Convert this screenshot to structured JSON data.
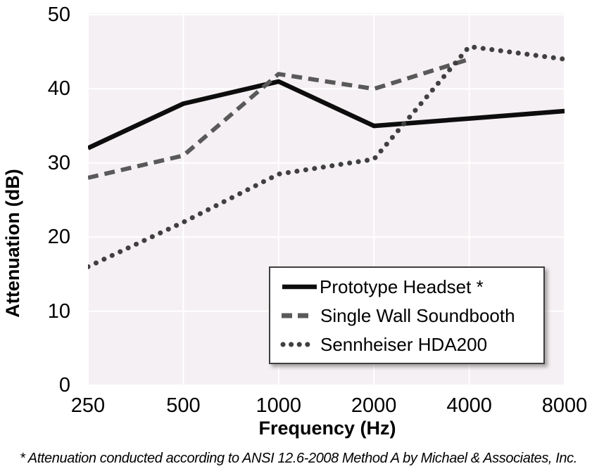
{
  "chart_data": {
    "type": "line",
    "title": "",
    "xlabel": "Frequency (Hz)",
    "ylabel": "Attenuation (dB)",
    "categories": [
      "250",
      "500",
      "1000",
      "2000",
      "4000",
      "8000"
    ],
    "y_ticks": [
      0,
      10,
      20,
      30,
      40,
      50
    ],
    "ylim": [
      0,
      50
    ],
    "grid": true,
    "plot_bg": "#f5f0f3",
    "grid_color": "#ffffff",
    "legend_position": "inside-bottom-right",
    "series": [
      {
        "name": "Prototype Headset *",
        "style": "solid",
        "color": "#0d0d0d",
        "values": [
          32,
          38,
          41,
          35,
          36,
          37
        ]
      },
      {
        "name": "Single Wall Soundbooth",
        "style": "dashed",
        "color": "#595959",
        "values": [
          28,
          31,
          42,
          40,
          44,
          null
        ]
      },
      {
        "name": "Sennheiser HDA200",
        "style": "dotted",
        "color": "#404040",
        "values": [
          16,
          22,
          28.5,
          30.5,
          45.7,
          44
        ]
      }
    ]
  },
  "footnote": "* Attenuation conducted according to ANSI 12.6-2008 Method A by Michael & Associates, Inc."
}
